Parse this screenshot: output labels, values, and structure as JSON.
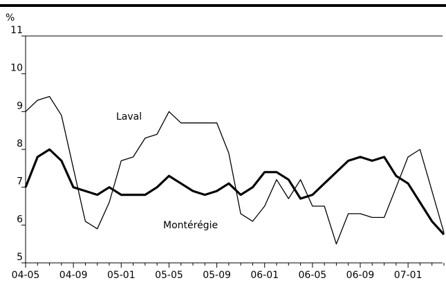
{
  "chart_data": {
    "type": "line",
    "y_label": "%",
    "categories": [
      "04-05",
      null,
      null,
      null,
      "04-09",
      null,
      null,
      null,
      "05-01",
      null,
      null,
      null,
      "05-05",
      null,
      null,
      null,
      "05-09",
      null,
      null,
      null,
      "06-01",
      null,
      null,
      null,
      "06-05",
      null,
      null,
      null,
      "06-09",
      null,
      null,
      null,
      "07-01",
      null,
      null,
      null
    ],
    "series": [
      {
        "name": "Laval",
        "color": "#000000",
        "width": 1.3,
        "values": [
          9.0,
          9.3,
          9.4,
          8.9,
          7.5,
          6.1,
          5.9,
          6.6,
          7.7,
          7.8,
          8.3,
          8.4,
          9.0,
          8.7,
          8.7,
          8.7,
          8.7,
          7.9,
          6.3,
          6.1,
          6.5,
          7.2,
          6.7,
          7.2,
          6.5,
          6.5,
          5.5,
          6.3,
          6.3,
          6.2,
          6.2,
          7.0,
          7.8,
          8.0,
          6.9,
          5.8
        ]
      },
      {
        "name": "Montérégie",
        "color": "#000000",
        "width": 3.2,
        "values": [
          7.0,
          7.8,
          8.0,
          7.7,
          7.0,
          6.9,
          6.8,
          7.0,
          6.8,
          6.8,
          6.8,
          7.0,
          7.3,
          7.1,
          6.9,
          6.8,
          6.9,
          7.1,
          6.8,
          7.0,
          7.4,
          7.4,
          7.2,
          6.7,
          6.8,
          7.1,
          7.4,
          7.7,
          7.8,
          7.7,
          7.8,
          7.3,
          7.1,
          6.6,
          6.1,
          5.75
        ]
      }
    ],
    "ylim": [
      5,
      11
    ],
    "yticks": [
      5,
      6,
      7,
      8,
      9,
      10,
      11
    ]
  }
}
